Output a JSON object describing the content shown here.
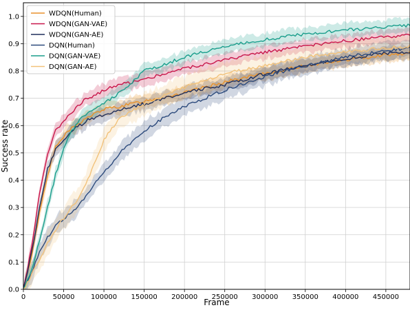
{
  "chart_data": {
    "type": "line",
    "title": "",
    "xlabel": "Frame",
    "ylabel": "Success rate",
    "xlim": [
      0,
      480000
    ],
    "ylim": [
      0,
      1.05
    ],
    "grid": true,
    "legend_position": "top-left",
    "xticks": [
      0,
      50000,
      100000,
      150000,
      200000,
      250000,
      300000,
      350000,
      400000,
      450000
    ],
    "xtick_labels": [
      "0",
      "50000",
      "100000",
      "150000",
      "200000",
      "250000",
      "300000",
      "350000",
      "400000",
      "450000"
    ],
    "yticks": [
      0.0,
      0.1,
      0.2,
      0.3,
      0.4,
      0.5,
      0.6,
      0.7,
      0.8,
      0.9,
      1.0
    ],
    "ytick_labels": [
      "0.0",
      "0.1",
      "0.2",
      "0.3",
      "0.4",
      "0.5",
      "0.6",
      "0.7",
      "0.8",
      "0.9",
      "1.0"
    ],
    "series": [
      {
        "name": "WDQN(Human)",
        "color": "#e8912a",
        "band": 0.03,
        "x": [
          0,
          10000,
          20000,
          30000,
          40000,
          50000,
          60000,
          70000,
          80000,
          100000,
          120000,
          150000,
          200000,
          250000,
          300000,
          350000,
          400000,
          450000,
          480000
        ],
        "y": [
          0,
          0.12,
          0.28,
          0.42,
          0.52,
          0.56,
          0.59,
          0.61,
          0.63,
          0.66,
          0.67,
          0.69,
          0.72,
          0.76,
          0.79,
          0.82,
          0.84,
          0.86,
          0.865
        ]
      },
      {
        "name": "WDQN(GAN-VAE)",
        "color": "#c8164a",
        "band": 0.03,
        "x": [
          0,
          10000,
          20000,
          30000,
          40000,
          50000,
          60000,
          70000,
          80000,
          100000,
          120000,
          150000,
          200000,
          250000,
          300000,
          350000,
          400000,
          450000,
          480000
        ],
        "y": [
          0,
          0.15,
          0.35,
          0.5,
          0.58,
          0.62,
          0.65,
          0.68,
          0.7,
          0.73,
          0.75,
          0.77,
          0.81,
          0.84,
          0.87,
          0.89,
          0.91,
          0.925,
          0.93
        ]
      },
      {
        "name": "WDQN(GAN-AE)",
        "color": "#1f2f5c",
        "band": 0.03,
        "x": [
          0,
          10000,
          20000,
          30000,
          40000,
          50000,
          60000,
          70000,
          80000,
          100000,
          120000,
          150000,
          200000,
          250000,
          300000,
          350000,
          400000,
          450000,
          480000
        ],
        "y": [
          0,
          0.13,
          0.3,
          0.44,
          0.51,
          0.55,
          0.58,
          0.6,
          0.62,
          0.64,
          0.66,
          0.68,
          0.72,
          0.75,
          0.79,
          0.82,
          0.845,
          0.865,
          0.87
        ]
      },
      {
        "name": "DQN(Human)",
        "color": "#2c4a7c",
        "band": 0.04,
        "x": [
          0,
          10000,
          20000,
          30000,
          40000,
          50000,
          60000,
          70000,
          80000,
          100000,
          120000,
          150000,
          180000,
          200000,
          250000,
          300000,
          350000,
          400000,
          450000,
          480000
        ],
        "y": [
          0,
          0.06,
          0.14,
          0.19,
          0.23,
          0.26,
          0.28,
          0.31,
          0.35,
          0.43,
          0.5,
          0.58,
          0.64,
          0.67,
          0.73,
          0.78,
          0.82,
          0.85,
          0.875,
          0.885
        ]
      },
      {
        "name": "DQN(GAN-VAE)",
        "color": "#1a9e8c",
        "band": 0.03,
        "x": [
          0,
          10000,
          20000,
          30000,
          40000,
          50000,
          60000,
          70000,
          80000,
          100000,
          120000,
          150000,
          200000,
          250000,
          300000,
          350000,
          400000,
          450000,
          480000
        ],
        "y": [
          0,
          0.07,
          0.18,
          0.3,
          0.42,
          0.52,
          0.58,
          0.62,
          0.65,
          0.68,
          0.72,
          0.8,
          0.85,
          0.89,
          0.915,
          0.935,
          0.95,
          0.962,
          0.968
        ]
      },
      {
        "name": "DQN(GAN-AE)",
        "color": "#f2c27a",
        "band": 0.05,
        "x": [
          0,
          10000,
          20000,
          30000,
          40000,
          50000,
          60000,
          70000,
          80000,
          90000,
          100000,
          120000,
          150000,
          200000,
          250000,
          300000,
          350000,
          400000,
          450000,
          480000
        ],
        "y": [
          0,
          0.05,
          0.11,
          0.17,
          0.22,
          0.26,
          0.3,
          0.34,
          0.4,
          0.47,
          0.55,
          0.63,
          0.68,
          0.74,
          0.79,
          0.82,
          0.85,
          0.87,
          0.885,
          0.89
        ]
      }
    ]
  }
}
